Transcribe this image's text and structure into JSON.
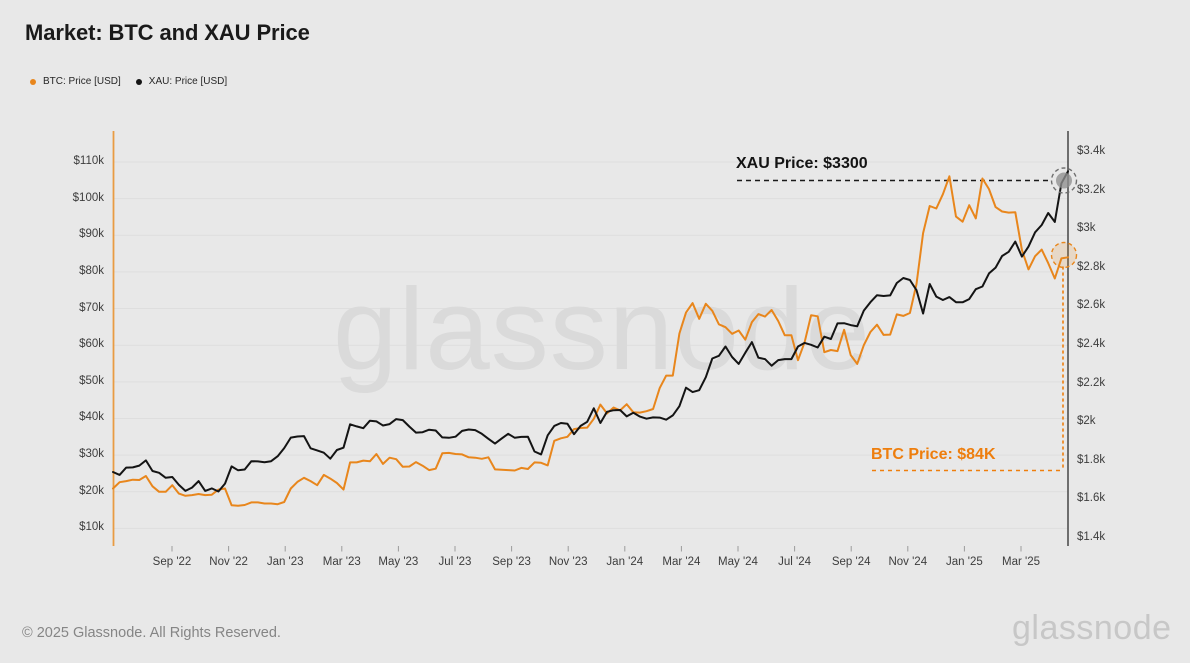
{
  "header": {
    "title": "Market: BTC and XAU Price"
  },
  "legend": {
    "items": [
      {
        "label": "BTC: Price [USD]",
        "color": "#e8861c"
      },
      {
        "label": "XAU: Price [USD]",
        "color": "#141414"
      }
    ]
  },
  "watermark": "glassnode",
  "footer": {
    "copyright": "© 2025 Glassnode. All Rights Reserved.",
    "brand": "glassnode"
  },
  "colors": {
    "background": "#e8e8e8",
    "gridline": "#dedede",
    "btc_orange": "#e8861c",
    "xau_black": "#141414",
    "annotation_orange": "#ee7e0d",
    "watermark_gray": "#dadada"
  },
  "chart_data": {
    "type": "line",
    "title": "Market: BTC and XAU Price",
    "grid": "horizontal-only",
    "legend_position": "top-left",
    "x_range": {
      "start": "2022-07-10",
      "step_days": 7,
      "end": "2025-04-20"
    },
    "x_tick_labels": [
      "Sep '22",
      "Nov '22",
      "Jan '23",
      "Mar '23",
      "May '23",
      "Jul '23",
      "Sep '23",
      "Nov '23",
      "Jan '24",
      "Mar '24",
      "May '24",
      "Jul '24",
      "Sep '24",
      "Nov '24",
      "Jan '25",
      "Mar '25"
    ],
    "left_axis": {
      "name": "BTC: Price [USD]",
      "max_k": 110,
      "min_k": 10,
      "tick_labels": [
        "$110k",
        "$100k",
        "$90k",
        "$80k",
        "$70k",
        "$60k",
        "$50k",
        "$40k",
        "$30k",
        "$20k",
        "$10k"
      ]
    },
    "right_axis": {
      "name": "XAU: Price [USD]",
      "max_usd": 3400,
      "min_usd": 1400,
      "tick_labels": [
        "$3.4k",
        "$3.2k",
        "$3k",
        "$2.8k",
        "$2.6k",
        "$2.4k",
        "$2.2k",
        "$2k",
        "$1.8k",
        "$1.6k",
        "$1.4k"
      ]
    },
    "series": [
      {
        "name": "BTC: Price [USD]",
        "axis": "left",
        "unit": "USD (thousands)",
        "color": "#e8861c",
        "values": [
          20.9,
          22.6,
          22.9,
          23.3,
          23.2,
          24.3,
          21.5,
          20.0,
          20.0,
          21.8,
          19.5,
          18.9,
          19.1,
          19.4,
          19.1,
          19.2,
          20.6,
          20.9,
          16.3,
          16.2,
          16.4,
          17.1,
          17.1,
          16.8,
          16.8,
          16.6,
          17.2,
          20.9,
          22.7,
          23.8,
          22.9,
          21.8,
          24.6,
          23.6,
          22.4,
          20.6,
          28.0,
          28.0,
          28.5,
          28.3,
          30.3,
          27.6,
          29.3,
          28.9,
          26.8,
          26.9,
          28.1,
          27.1,
          25.9,
          26.3,
          30.5,
          30.6,
          30.3,
          30.2,
          29.4,
          29.3,
          29.0,
          29.4,
          26.1,
          26.0,
          25.9,
          25.8,
          26.5,
          26.2,
          28.0,
          27.9,
          27.2,
          33.9,
          34.6,
          35.0,
          37.1,
          37.4,
          37.5,
          39.9,
          43.8,
          41.4,
          43.0,
          42.2,
          43.9,
          41.7,
          41.6,
          42.0,
          42.6,
          48.3,
          51.7,
          51.7,
          63.2,
          68.9,
          71.5,
          67.2,
          71.3,
          69.4,
          65.7,
          64.9,
          63.1,
          64.0,
          61.5,
          66.3,
          68.5,
          67.8,
          69.6,
          66.6,
          62.7,
          62.7,
          55.9,
          60.8,
          68.2,
          67.9,
          58.1,
          58.7,
          58.4,
          64.2,
          57.3,
          54.9,
          60.0,
          63.6,
          65.6,
          62.8,
          62.9,
          68.4,
          68.0,
          68.8,
          76.7,
          90.6,
          98.0,
          97.3,
          101.2,
          106.1,
          95.1,
          93.7,
          98.2,
          94.6,
          105.5,
          102.6,
          97.7,
          96.5,
          96.2,
          96.3,
          86.0,
          80.7,
          84.3,
          86.1,
          82.4,
          78.2,
          83.7,
          84.0
        ]
      },
      {
        "name": "XAU: Price [USD]",
        "axis": "right",
        "unit": "USD",
        "color": "#141414",
        "values": [
          1742,
          1727,
          1765,
          1766,
          1775,
          1802,
          1747,
          1738,
          1712,
          1716,
          1675,
          1644,
          1661,
          1695,
          1644,
          1657,
          1641,
          1682,
          1771,
          1751,
          1755,
          1798,
          1797,
          1793,
          1798,
          1824,
          1866,
          1920,
          1926,
          1928,
          1865,
          1854,
          1842,
          1811,
          1856,
          1868,
          1989,
          1978,
          1969,
          2008,
          2004,
          1983,
          1990,
          2016,
          2011,
          1977,
          1946,
          1948,
          1961,
          1957,
          1921,
          1919,
          1925,
          1955,
          1962,
          1959,
          1940,
          1914,
          1889,
          1915,
          1940,
          1919,
          1924,
          1925,
          1848,
          1833,
          1932,
          1981,
          1996,
          1992,
          1938,
          1981,
          2002,
          2072,
          1996,
          2054,
          2062,
          2063,
          2030,
          2049,
          2029,
          2018,
          2025,
          2024,
          2013,
          2035,
          2083,
          2179,
          2156,
          2166,
          2233,
          2330,
          2344,
          2392,
          2338,
          2302,
          2360,
          2415,
          2334,
          2327,
          2293,
          2322,
          2327,
          2327,
          2392,
          2411,
          2401,
          2387,
          2443,
          2431,
          2512,
          2513,
          2503,
          2497,
          2578,
          2622,
          2658,
          2654,
          2657,
          2721,
          2747,
          2737,
          2684,
          2563,
          2716,
          2651,
          2633,
          2648,
          2622,
          2621,
          2638,
          2689,
          2703,
          2771,
          2801,
          2861,
          2883,
          2936,
          2858,
          2910,
          2984,
          3022,
          3084,
          3038,
          3238,
          3300
        ]
      }
    ],
    "annotations": [
      {
        "id": "xau-latest",
        "text": "XAU Price: $3300",
        "series": "XAU: Price [USD]",
        "value_usd": 3300,
        "color": "#141414"
      },
      {
        "id": "btc-latest",
        "text": "BTC Price: $84K",
        "series": "BTC: Price [USD]",
        "value_usd": 84000,
        "color": "#ee7e0d"
      }
    ]
  }
}
